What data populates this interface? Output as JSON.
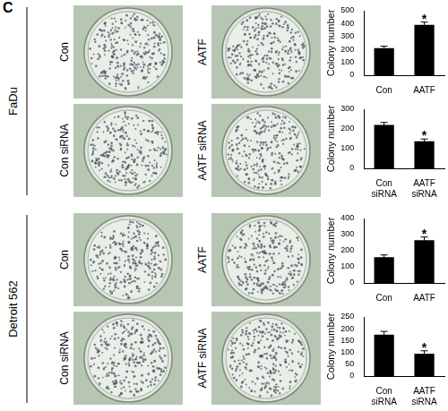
{
  "panel_label": "C",
  "groups": [
    {
      "cell_line": "FaDu",
      "rows": [
        [
          "Con",
          "AATF"
        ],
        [
          "Con siRNA",
          "AATF siRNA"
        ]
      ]
    },
    {
      "cell_line": "Detroit 562",
      "rows": [
        [
          "Con",
          "AATF"
        ],
        [
          "Con siRNA",
          "AATF siRNA"
        ]
      ]
    }
  ],
  "chart_data": [
    {
      "type": "bar",
      "y_label": "Colony number",
      "categories": [
        "Con",
        "AATF"
      ],
      "values": [
        210,
        390
      ],
      "error": [
        15,
        22
      ],
      "annotation": {
        "category": "AATF",
        "text": "*"
      },
      "color": "#000000",
      "ylim": [
        0,
        500
      ],
      "yticks": [
        0,
        100,
        200,
        300,
        400,
        500
      ],
      "grid": false
    },
    {
      "type": "bar",
      "y_label": "Colony number",
      "categories": [
        "Con siRNA",
        "AATF siRNA"
      ],
      "values": [
        220,
        137
      ],
      "error": [
        13,
        12
      ],
      "annotation": {
        "category": "AATF siRNA",
        "text": "*"
      },
      "color": "#000000",
      "ylim": [
        0,
        300
      ],
      "yticks": [
        0,
        100,
        200,
        300
      ],
      "grid": false
    },
    {
      "type": "bar",
      "y_label": "Colony number",
      "categories": [
        "Con",
        "AATF"
      ],
      "values": [
        160,
        265
      ],
      "error": [
        14,
        20
      ],
      "annotation": {
        "category": "AATF",
        "text": "*"
      },
      "color": "#000000",
      "ylim": [
        0,
        400
      ],
      "yticks": [
        0,
        100,
        200,
        300,
        400
      ],
      "grid": false
    },
    {
      "type": "bar",
      "y_label": "Colony number",
      "categories": [
        "Con siRNA",
        "AATF siRNA"
      ],
      "values": [
        175,
        95
      ],
      "error": [
        14,
        12
      ],
      "annotation": {
        "category": "AATF siRNA",
        "text": "*"
      },
      "color": "#000000",
      "ylim": [
        0,
        250
      ],
      "yticks": [
        0,
        50,
        100,
        150,
        200,
        250
      ],
      "grid": false
    }
  ]
}
